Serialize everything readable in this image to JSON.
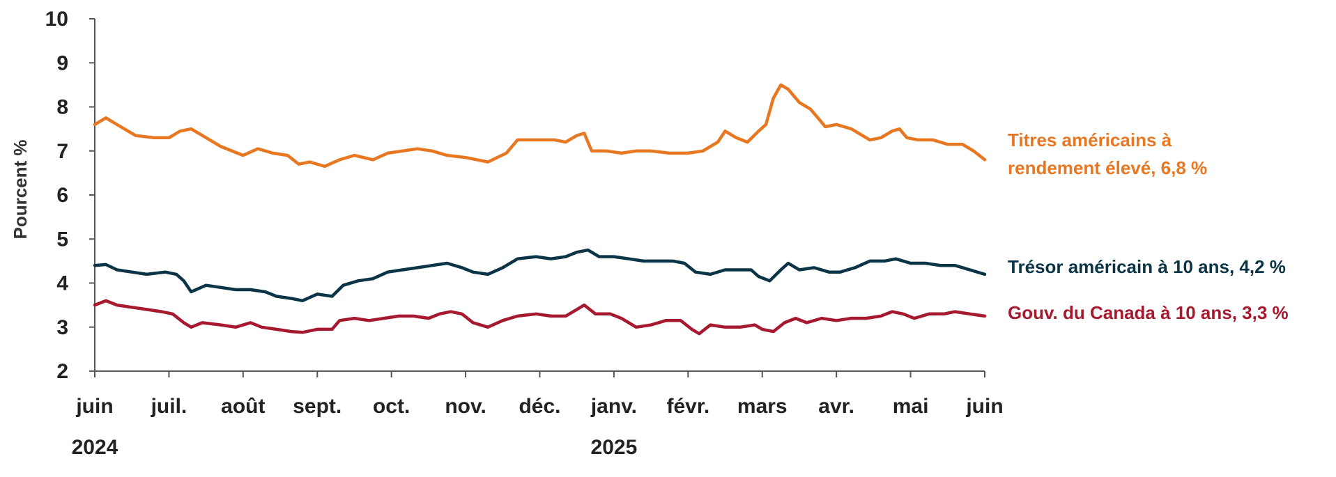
{
  "chart_data": {
    "type": "line",
    "title": "",
    "ylabel": "Pourcent  %",
    "xlabel": "",
    "ylim": [
      2,
      10
    ],
    "yticks": [
      2,
      3,
      4,
      5,
      6,
      7,
      8,
      9,
      10
    ],
    "x_ticks": [
      {
        "label": "juin",
        "year": "2024"
      },
      {
        "label": "juil.",
        "year": ""
      },
      {
        "label": "août",
        "year": ""
      },
      {
        "label": "sept.",
        "year": ""
      },
      {
        "label": "oct.",
        "year": ""
      },
      {
        "label": "nov.",
        "year": ""
      },
      {
        "label": "déc.",
        "year": ""
      },
      {
        "label": "janv.",
        "year": "2025"
      },
      {
        "label": "févr.",
        "year": ""
      },
      {
        "label": "mars",
        "year": ""
      },
      {
        "label": "avr.",
        "year": ""
      },
      {
        "label": "mai",
        "year": ""
      },
      {
        "label": "juin",
        "year": ""
      }
    ],
    "grid": false,
    "series": [
      {
        "name": "Titres américains à rendement élevé, 6,8 %",
        "label_lines": [
          "Titres américains à",
          "rendement élevé, 6,8 %"
        ],
        "color": "#E87722",
        "points": [
          [
            0,
            7.6
          ],
          [
            0.15,
            7.75
          ],
          [
            0.35,
            7.55
          ],
          [
            0.55,
            7.35
          ],
          [
            0.8,
            7.3
          ],
          [
            1.0,
            7.3
          ],
          [
            1.15,
            7.45
          ],
          [
            1.3,
            7.5
          ],
          [
            1.45,
            7.35
          ],
          [
            1.7,
            7.1
          ],
          [
            2.0,
            6.9
          ],
          [
            2.2,
            7.05
          ],
          [
            2.4,
            6.95
          ],
          [
            2.6,
            6.9
          ],
          [
            2.75,
            6.7
          ],
          [
            2.9,
            6.75
          ],
          [
            3.1,
            6.65
          ],
          [
            3.3,
            6.8
          ],
          [
            3.5,
            6.9
          ],
          [
            3.75,
            6.8
          ],
          [
            3.95,
            6.95
          ],
          [
            4.15,
            7.0
          ],
          [
            4.35,
            7.05
          ],
          [
            4.55,
            7.0
          ],
          [
            4.75,
            6.9
          ],
          [
            5.0,
            6.85
          ],
          [
            5.3,
            6.75
          ],
          [
            5.55,
            6.95
          ],
          [
            5.7,
            7.25
          ],
          [
            6.0,
            7.25
          ],
          [
            6.2,
            7.25
          ],
          [
            6.35,
            7.2
          ],
          [
            6.5,
            7.35
          ],
          [
            6.6,
            7.4
          ],
          [
            6.7,
            7.0
          ],
          [
            6.9,
            7.0
          ],
          [
            7.1,
            6.95
          ],
          [
            7.3,
            7.0
          ],
          [
            7.5,
            7.0
          ],
          [
            7.75,
            6.95
          ],
          [
            8.0,
            6.95
          ],
          [
            8.2,
            7.0
          ],
          [
            8.4,
            7.2
          ],
          [
            8.5,
            7.45
          ],
          [
            8.65,
            7.3
          ],
          [
            8.8,
            7.2
          ],
          [
            8.95,
            7.45
          ],
          [
            9.05,
            7.6
          ],
          [
            9.15,
            8.2
          ],
          [
            9.25,
            8.5
          ],
          [
            9.35,
            8.4
          ],
          [
            9.5,
            8.1
          ],
          [
            9.65,
            7.95
          ],
          [
            9.75,
            7.75
          ],
          [
            9.85,
            7.55
          ],
          [
            10.0,
            7.6
          ],
          [
            10.2,
            7.5
          ],
          [
            10.45,
            7.25
          ],
          [
            10.6,
            7.3
          ],
          [
            10.75,
            7.45
          ],
          [
            10.85,
            7.5
          ],
          [
            10.95,
            7.3
          ],
          [
            11.1,
            7.25
          ],
          [
            11.3,
            7.25
          ],
          [
            11.5,
            7.15
          ],
          [
            11.7,
            7.15
          ],
          [
            11.85,
            7.0
          ],
          [
            12.0,
            6.8
          ]
        ]
      },
      {
        "name": "Trésor américain à 10 ans, 4,2 %",
        "label_lines": [
          "Trésor américain à 10 ans, 4,2 %"
        ],
        "color": "#0B3546",
        "points": [
          [
            0,
            4.4
          ],
          [
            0.15,
            4.42
          ],
          [
            0.3,
            4.3
          ],
          [
            0.5,
            4.25
          ],
          [
            0.7,
            4.2
          ],
          [
            0.95,
            4.25
          ],
          [
            1.1,
            4.2
          ],
          [
            1.2,
            4.05
          ],
          [
            1.3,
            3.8
          ],
          [
            1.5,
            3.95
          ],
          [
            1.7,
            3.9
          ],
          [
            1.9,
            3.85
          ],
          [
            2.1,
            3.85
          ],
          [
            2.3,
            3.8
          ],
          [
            2.45,
            3.7
          ],
          [
            2.65,
            3.65
          ],
          [
            2.8,
            3.6
          ],
          [
            3.0,
            3.75
          ],
          [
            3.2,
            3.7
          ],
          [
            3.35,
            3.95
          ],
          [
            3.55,
            4.05
          ],
          [
            3.75,
            4.1
          ],
          [
            3.95,
            4.25
          ],
          [
            4.15,
            4.3
          ],
          [
            4.35,
            4.35
          ],
          [
            4.55,
            4.4
          ],
          [
            4.75,
            4.45
          ],
          [
            4.95,
            4.35
          ],
          [
            5.1,
            4.25
          ],
          [
            5.3,
            4.2
          ],
          [
            5.5,
            4.35
          ],
          [
            5.7,
            4.55
          ],
          [
            5.95,
            4.6
          ],
          [
            6.15,
            4.55
          ],
          [
            6.35,
            4.6
          ],
          [
            6.5,
            4.7
          ],
          [
            6.65,
            4.75
          ],
          [
            6.8,
            4.6
          ],
          [
            7.0,
            4.6
          ],
          [
            7.2,
            4.55
          ],
          [
            7.4,
            4.5
          ],
          [
            7.6,
            4.5
          ],
          [
            7.8,
            4.5
          ],
          [
            7.95,
            4.45
          ],
          [
            8.1,
            4.25
          ],
          [
            8.3,
            4.2
          ],
          [
            8.5,
            4.3
          ],
          [
            8.7,
            4.3
          ],
          [
            8.85,
            4.3
          ],
          [
            8.95,
            4.15
          ],
          [
            9.1,
            4.05
          ],
          [
            9.25,
            4.3
          ],
          [
            9.35,
            4.45
          ],
          [
            9.5,
            4.3
          ],
          [
            9.7,
            4.35
          ],
          [
            9.9,
            4.25
          ],
          [
            10.05,
            4.25
          ],
          [
            10.25,
            4.35
          ],
          [
            10.45,
            4.5
          ],
          [
            10.65,
            4.5
          ],
          [
            10.8,
            4.55
          ],
          [
            11.0,
            4.45
          ],
          [
            11.2,
            4.45
          ],
          [
            11.4,
            4.4
          ],
          [
            11.6,
            4.4
          ],
          [
            11.8,
            4.3
          ],
          [
            12.0,
            4.2
          ]
        ]
      },
      {
        "name": "Gouv. du Canada à 10 ans, 3,3 %",
        "label_lines": [
          "Gouv. du Canada à 10 ans, 3,3 %"
        ],
        "color": "#A6192E",
        "points": [
          [
            0,
            3.5
          ],
          [
            0.15,
            3.6
          ],
          [
            0.3,
            3.5
          ],
          [
            0.5,
            3.45
          ],
          [
            0.7,
            3.4
          ],
          [
            0.9,
            3.35
          ],
          [
            1.05,
            3.3
          ],
          [
            1.2,
            3.1
          ],
          [
            1.3,
            3.0
          ],
          [
            1.45,
            3.1
          ],
          [
            1.7,
            3.05
          ],
          [
            1.9,
            3.0
          ],
          [
            2.1,
            3.1
          ],
          [
            2.25,
            3.0
          ],
          [
            2.45,
            2.95
          ],
          [
            2.65,
            2.9
          ],
          [
            2.8,
            2.88
          ],
          [
            3.0,
            2.95
          ],
          [
            3.2,
            2.95
          ],
          [
            3.3,
            3.15
          ],
          [
            3.5,
            3.2
          ],
          [
            3.7,
            3.15
          ],
          [
            3.9,
            3.2
          ],
          [
            4.1,
            3.25
          ],
          [
            4.3,
            3.25
          ],
          [
            4.5,
            3.2
          ],
          [
            4.65,
            3.3
          ],
          [
            4.8,
            3.35
          ],
          [
            4.95,
            3.3
          ],
          [
            5.1,
            3.1
          ],
          [
            5.3,
            3.0
          ],
          [
            5.5,
            3.15
          ],
          [
            5.7,
            3.25
          ],
          [
            5.95,
            3.3
          ],
          [
            6.15,
            3.25
          ],
          [
            6.35,
            3.25
          ],
          [
            6.5,
            3.4
          ],
          [
            6.6,
            3.5
          ],
          [
            6.75,
            3.3
          ],
          [
            6.95,
            3.3
          ],
          [
            7.1,
            3.2
          ],
          [
            7.3,
            3.0
          ],
          [
            7.5,
            3.05
          ],
          [
            7.7,
            3.15
          ],
          [
            7.9,
            3.15
          ],
          [
            8.05,
            2.95
          ],
          [
            8.15,
            2.85
          ],
          [
            8.3,
            3.05
          ],
          [
            8.5,
            3.0
          ],
          [
            8.7,
            3.0
          ],
          [
            8.9,
            3.05
          ],
          [
            9.0,
            2.95
          ],
          [
            9.15,
            2.9
          ],
          [
            9.3,
            3.1
          ],
          [
            9.45,
            3.2
          ],
          [
            9.6,
            3.1
          ],
          [
            9.8,
            3.2
          ],
          [
            10.0,
            3.15
          ],
          [
            10.2,
            3.2
          ],
          [
            10.4,
            3.2
          ],
          [
            10.6,
            3.25
          ],
          [
            10.75,
            3.35
          ],
          [
            10.9,
            3.3
          ],
          [
            11.05,
            3.2
          ],
          [
            11.25,
            3.3
          ],
          [
            11.45,
            3.3
          ],
          [
            11.6,
            3.35
          ],
          [
            11.8,
            3.3
          ],
          [
            12.0,
            3.25
          ]
        ]
      }
    ]
  }
}
